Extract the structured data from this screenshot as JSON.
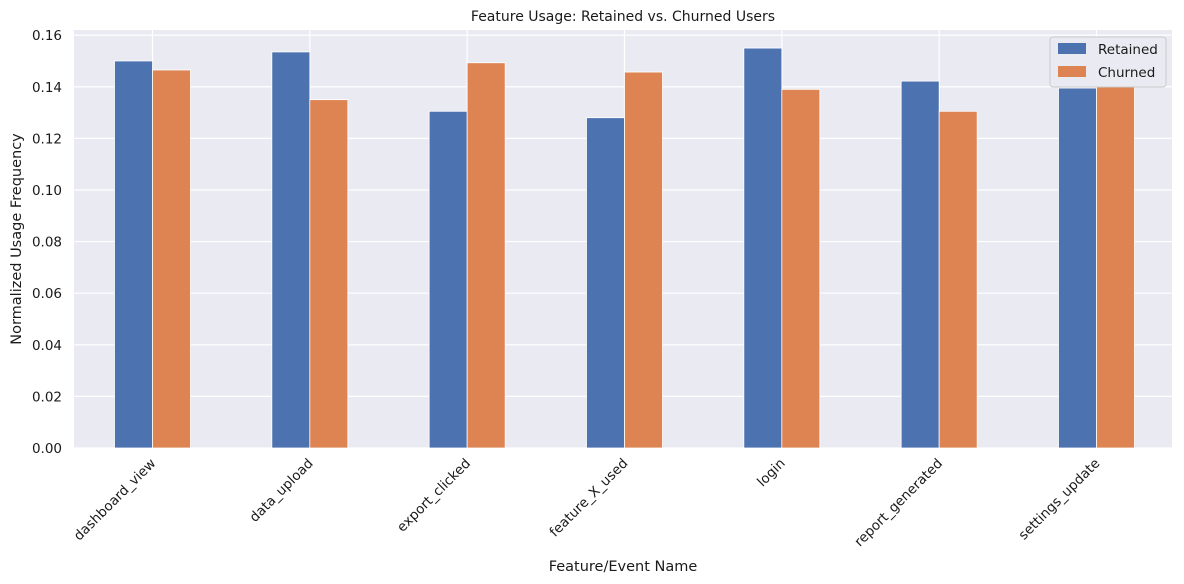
{
  "chart_data": {
    "type": "bar",
    "title": "Feature Usage: Retained vs. Churned Users",
    "xlabel": "Feature/Event Name",
    "ylabel": "Normalized Usage Frequency",
    "categories": [
      "dashboard_view",
      "data_upload",
      "export_clicked",
      "feature_X_used",
      "login",
      "report_generated",
      "settings_update"
    ],
    "series": [
      {
        "name": "Retained",
        "color": "#4c72b0",
        "values": [
          0.15,
          0.1535,
          0.1305,
          0.128,
          0.155,
          0.1422,
          0.1395
        ]
      },
      {
        "name": "Churned",
        "color": "#dd8452",
        "values": [
          0.1465,
          0.135,
          0.1493,
          0.1457,
          0.139,
          0.1305,
          0.1525
        ]
      }
    ],
    "ylim": [
      0,
      0.162
    ],
    "yticks": [
      "0.00",
      "0.02",
      "0.04",
      "0.06",
      "0.08",
      "0.10",
      "0.12",
      "0.14",
      "0.16"
    ],
    "grid": true,
    "legend_position": "top-right"
  }
}
